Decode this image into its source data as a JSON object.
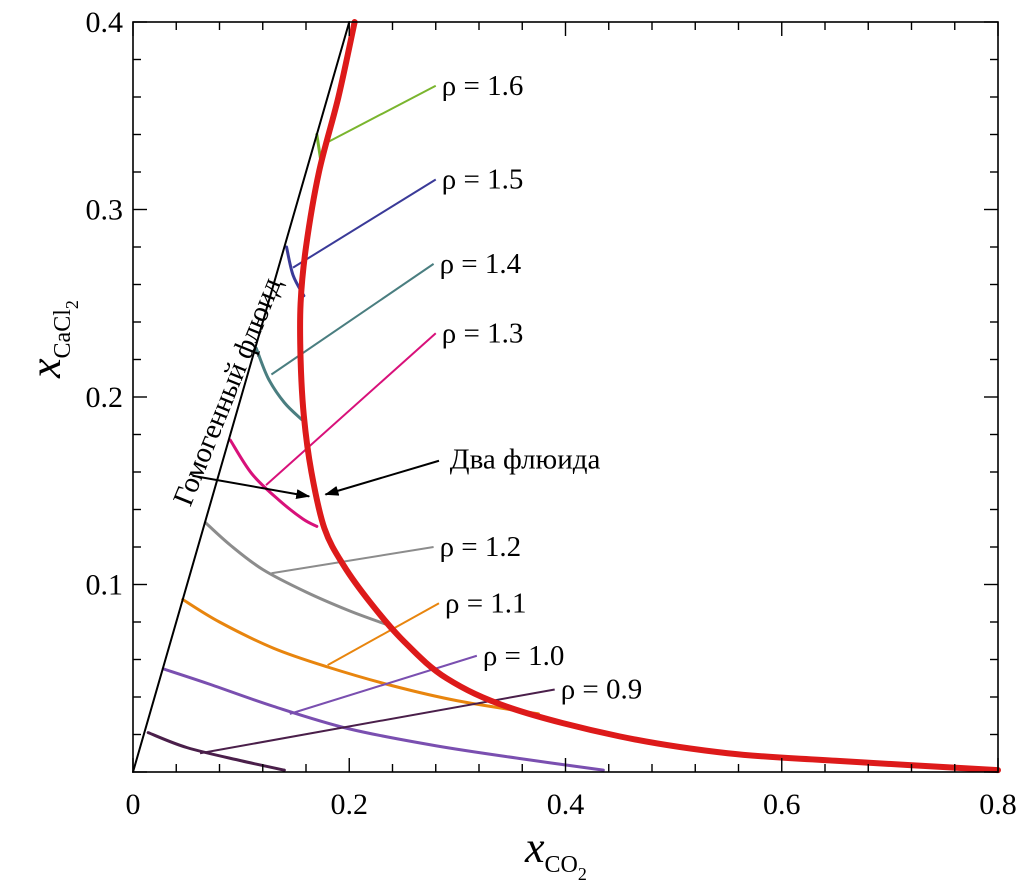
{
  "chart_data": {
    "type": "line",
    "xlabel": "x",
    "xlabel_sub": "CO",
    "xlabel_sub2": "2",
    "ylabel": "x",
    "ylabel_sub": "CaCl",
    "ylabel_sub2": "2",
    "xlim": [
      0,
      0.8
    ],
    "ylim": [
      0,
      0.4
    ],
    "x_ticks": [
      {
        "value": 0,
        "label": "0"
      },
      {
        "value": 0.2,
        "label": "0.2"
      },
      {
        "value": 0.4,
        "label": "0.4"
      },
      {
        "value": 0.6,
        "label": "0.6"
      },
      {
        "value": 0.8,
        "label": "0.8"
      }
    ],
    "y_ticks": [
      {
        "value": 0.1,
        "label": "0.1"
      },
      {
        "value": 0.2,
        "label": "0.2"
      },
      {
        "value": 0.3,
        "label": "0.3"
      },
      {
        "value": 0.4,
        "label": "0.4"
      }
    ],
    "grid": false,
    "boundaries": [
      {
        "id": "homogeneous-boundary",
        "color": "#000000",
        "points": [
          [
            0.0,
            0.0
          ],
          [
            0.2,
            0.4
          ]
        ]
      },
      {
        "id": "two-fluid-boundary",
        "color": "#dd1a1a",
        "points": [
          [
            0.205,
            0.4
          ],
          [
            0.19,
            0.36
          ],
          [
            0.172,
            0.32
          ],
          [
            0.16,
            0.28
          ],
          [
            0.155,
            0.25
          ],
          [
            0.155,
            0.22
          ],
          [
            0.158,
            0.19
          ],
          [
            0.165,
            0.16
          ],
          [
            0.177,
            0.13
          ],
          [
            0.195,
            0.11
          ],
          [
            0.22,
            0.09
          ],
          [
            0.25,
            0.07
          ],
          [
            0.29,
            0.05
          ],
          [
            0.35,
            0.034
          ],
          [
            0.45,
            0.019
          ],
          [
            0.55,
            0.01
          ],
          [
            0.65,
            0.006
          ],
          [
            0.8,
            0.001
          ]
        ]
      }
    ],
    "series": [
      {
        "name": "ρ = 1.6",
        "color": "#7ab52e",
        "points": [
          [
            0.17,
            0.34
          ],
          [
            0.174,
            0.325
          ]
        ],
        "leader": {
          "from": [
            0.177,
            0.335
          ],
          "to": [
            0.28,
            0.366
          ]
        }
      },
      {
        "name": "ρ = 1.5",
        "color": "#3a3a98",
        "points": [
          [
            0.142,
            0.28
          ],
          [
            0.148,
            0.265
          ],
          [
            0.158,
            0.254
          ]
        ],
        "leader": {
          "from": [
            0.148,
            0.269
          ],
          "to": [
            0.28,
            0.316
          ]
        }
      },
      {
        "name": "ρ = 1.4",
        "color": "#4a7e80",
        "points": [
          [
            0.114,
            0.226
          ],
          [
            0.125,
            0.21
          ],
          [
            0.14,
            0.197
          ],
          [
            0.156,
            0.188
          ]
        ],
        "leader": {
          "from": [
            0.128,
            0.212
          ],
          "to": [
            0.278,
            0.271
          ]
        }
      },
      {
        "name": "ρ = 1.3",
        "color": "#d8117a",
        "points": [
          [
            0.09,
            0.177
          ],
          [
            0.11,
            0.159
          ],
          [
            0.135,
            0.145
          ],
          [
            0.157,
            0.135
          ],
          [
            0.17,
            0.131
          ]
        ],
        "leader": {
          "from": [
            0.123,
            0.153
          ],
          "to": [
            0.28,
            0.234
          ]
        }
      },
      {
        "name": "ρ = 1.2",
        "color": "#8c8c8c",
        "points": [
          [
            0.067,
            0.133
          ],
          [
            0.09,
            0.121
          ],
          [
            0.12,
            0.108
          ],
          [
            0.16,
            0.096
          ],
          [
            0.2,
            0.086
          ],
          [
            0.233,
            0.079
          ]
        ],
        "leader": {
          "from": [
            0.128,
            0.106
          ],
          "to": [
            0.278,
            0.12
          ]
        }
      },
      {
        "name": "ρ = 1.1",
        "color": "#e8850e",
        "points": [
          [
            0.046,
            0.092
          ],
          [
            0.08,
            0.08
          ],
          [
            0.13,
            0.066
          ],
          [
            0.18,
            0.056
          ],
          [
            0.24,
            0.046
          ],
          [
            0.3,
            0.038
          ],
          [
            0.375,
            0.031
          ]
        ],
        "leader": {
          "from": [
            0.18,
            0.057
          ],
          "to": [
            0.283,
            0.09
          ]
        }
      },
      {
        "name": "ρ = 1.0",
        "color": "#7a4fb0",
        "points": [
          [
            0.028,
            0.055
          ],
          [
            0.07,
            0.047
          ],
          [
            0.13,
            0.035
          ],
          [
            0.2,
            0.023
          ],
          [
            0.28,
            0.014
          ],
          [
            0.36,
            0.007
          ],
          [
            0.435,
            0.001
          ]
        ],
        "leader": {
          "from": [
            0.145,
            0.031
          ],
          "to": [
            0.318,
            0.062
          ]
        }
      },
      {
        "name": "ρ = 0.9",
        "color": "#4a1f4a",
        "points": [
          [
            0.014,
            0.021
          ],
          [
            0.05,
            0.013
          ],
          [
            0.1,
            0.006
          ],
          [
            0.14,
            0.001
          ]
        ],
        "leader": {
          "from": [
            0.062,
            0.01
          ],
          "to": [
            0.39,
            0.044
          ]
        }
      }
    ],
    "annotations": [
      {
        "text": "Гомогенный флюид",
        "pos": [
          0.053,
          0.141
        ],
        "rotation": -68
      },
      {
        "text": "Два флюида",
        "pos": [
          0.293,
          0.162
        ]
      }
    ],
    "arrows": [
      {
        "from": [
          0.055,
          0.158
        ],
        "to": [
          0.163,
          0.147
        ]
      },
      {
        "from": [
          0.283,
          0.166
        ],
        "to": [
          0.178,
          0.148
        ]
      }
    ]
  }
}
